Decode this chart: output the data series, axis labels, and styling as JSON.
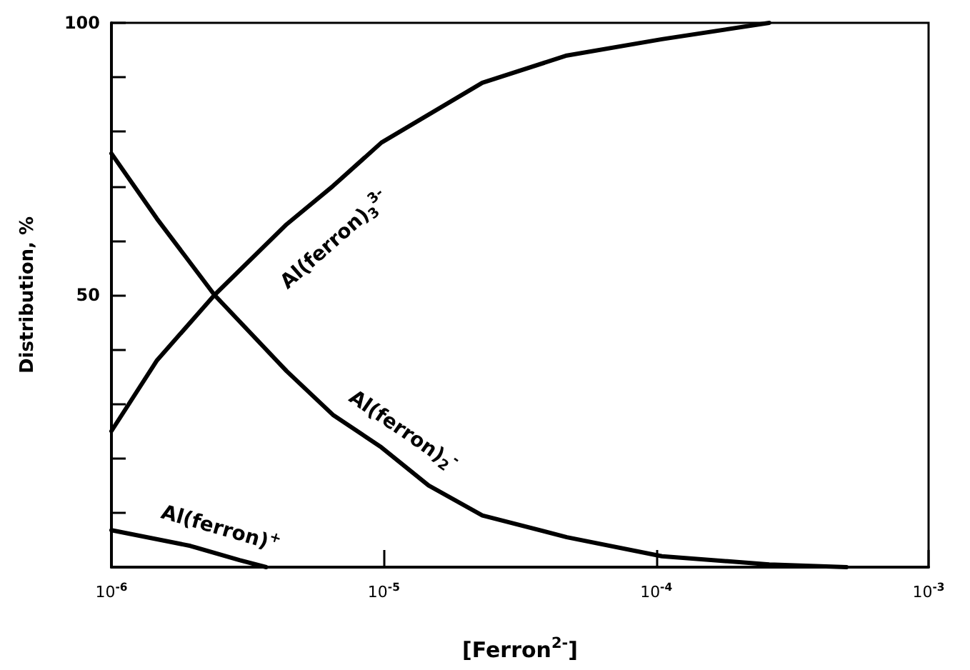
{
  "chart_data": {
    "type": "line",
    "xlabel": "[Ferron$^{2-}$]",
    "ylabel": "Distribution, %",
    "log": "x",
    "xlim": [
      1e-06,
      0.001
    ],
    "xticks": [
      {
        "value": 1e-06,
        "label": "10$^{-6}$"
      },
      {
        "value": 1e-05,
        "label": "10$^{-5}$"
      },
      {
        "value": 0.0001,
        "label": "10$^{-4}$"
      },
      {
        "value": 0.001,
        "label": "10$^{-3}$"
      }
    ],
    "ylim": [
      0,
      100
    ],
    "yticks": [
      {
        "value": 0,
        "label": null
      },
      {
        "value": 10,
        "label": null
      },
      {
        "value": 20,
        "label": null
      },
      {
        "value": 30,
        "label": null
      },
      {
        "value": 40,
        "label": null
      },
      50,
      {
        "value": 60,
        "label": null
      },
      {
        "value": 70,
        "label": null
      },
      {
        "value": 80,
        "label": null
      },
      {
        "value": 90,
        "label": null
      },
      100
    ],
    "grid": false,
    "legend": false,
    "marker": "none",
    "line_style": "solid",
    "series": [
      {
        "name": "Al(ferron)$_{3}$$^{3-}$",
        "color": "#000000",
        "x": [
          1e-06,
          1.47e-06,
          2.39e-06,
          4.4e-06,
          6.5e-06,
          9.8e-06,
          2.3e-05,
          4.7e-05,
          0.000105,
          0.00026
        ],
        "values": [
          25,
          38,
          50,
          63,
          70,
          78,
          89,
          94,
          97,
          100
        ]
      },
      {
        "name": "Al(ferron)$_{2}$$^{-}$",
        "color": "#000000",
        "x": [
          1e-06,
          1.47e-06,
          2.39e-06,
          4.4e-06,
          6.5e-06,
          9.8e-06,
          1.46e-05,
          2.3e-05,
          4.7e-05,
          0.000105,
          0.00026,
          0.0005
        ],
        "values": [
          76,
          64,
          50,
          36,
          28,
          22,
          15,
          9.5,
          5.5,
          2,
          0.5,
          0
        ]
      },
      {
        "name": "Al(ferron)$^{+}$",
        "color": "#000000",
        "x": [
          1e-06,
          1.95e-06,
          2.95e-06,
          3.7e-06
        ],
        "values": [
          6.8,
          3.9,
          1.3,
          0
        ]
      }
    ]
  }
}
